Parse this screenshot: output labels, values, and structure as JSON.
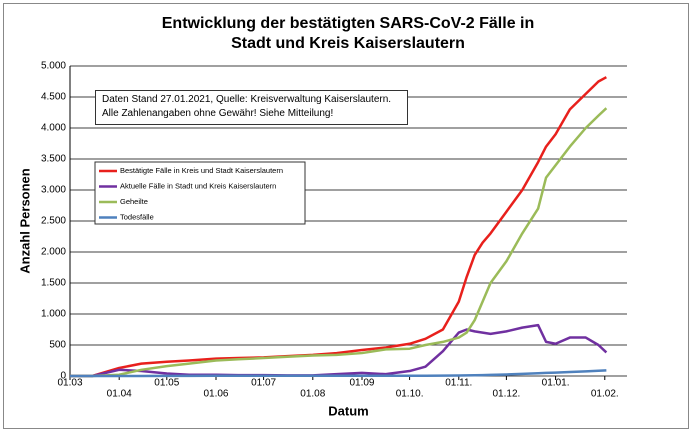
{
  "chart_data": {
    "type": "line",
    "title": "Entwicklung der bestätigten SARS-CoV-2 Fälle in Stadt und Kreis Kaiserslautern",
    "annotation": "Daten Stand 27.01.2021, Quelle: Kreisverwaltung Kaiserslautern. Alle Zahlenangaben ohne Gewähr! Siehe Mitteilung!",
    "xlabel": "Datum",
    "ylabel": "Anzahl Personen",
    "x": [
      0,
      14,
      31,
      45,
      61,
      75,
      92,
      106,
      122,
      137,
      153,
      168,
      184,
      199,
      214,
      224,
      235,
      245,
      250,
      255,
      260,
      265,
      275,
      285,
      295,
      300,
      306,
      315,
      325,
      333,
      338
    ],
    "series": [
      {
        "name": "Bestätigte Fälle in Kreis und Stadt Kaiserslautern",
        "color": "#e8201c",
        "values": [
          0,
          0,
          130,
          200,
          230,
          250,
          280,
          290,
          300,
          320,
          340,
          370,
          420,
          460,
          520,
          600,
          750,
          1200,
          1600,
          1950,
          2150,
          2300,
          2650,
          3000,
          3450,
          3700,
          3900,
          4300,
          4550,
          4750,
          4820
        ]
      },
      {
        "name": "Aktuelle Fälle in Stadt und Kreis Kaiserslautern",
        "color": "#7030a0",
        "values": [
          0,
          0,
          100,
          80,
          40,
          20,
          20,
          15,
          15,
          10,
          10,
          30,
          50,
          30,
          80,
          150,
          400,
          700,
          750,
          720,
          700,
          680,
          720,
          780,
          820,
          550,
          520,
          620,
          620,
          500,
          380
        ]
      },
      {
        "name": "Geheilte",
        "color": "#9bbb59",
        "values": [
          0,
          0,
          20,
          100,
          160,
          200,
          250,
          270,
          290,
          310,
          330,
          340,
          370,
          430,
          440,
          500,
          550,
          620,
          700,
          900,
          1200,
          1500,
          1850,
          2300,
          2700,
          3200,
          3400,
          3700,
          4000,
          4200,
          4320
        ]
      },
      {
        "name": "Todesfälle",
        "color": "#4f81bd",
        "values": [
          0,
          0,
          0,
          0,
          2,
          3,
          4,
          4,
          4,
          4,
          4,
          4,
          4,
          4,
          5,
          5,
          6,
          8,
          10,
          12,
          15,
          18,
          25,
          35,
          45,
          50,
          55,
          65,
          75,
          85,
          90
        ]
      }
    ],
    "xlim": [
      0,
      351
    ],
    "xticks": [
      {
        "value": 0,
        "label": "01.03"
      },
      {
        "value": 31,
        "label": "01.04"
      },
      {
        "value": 61,
        "label": "01.05"
      },
      {
        "value": 92,
        "label": "01.06"
      },
      {
        "value": 122,
        "label": "01.07"
      },
      {
        "value": 153,
        "label": "01.08"
      },
      {
        "value": 184,
        "label": "01.09"
      },
      {
        "value": 214,
        "label": "01.10."
      },
      {
        "value": 245,
        "label": "01.11."
      },
      {
        "value": 275,
        "label": "01.12."
      },
      {
        "value": 306,
        "label": "01.01."
      },
      {
        "value": 337,
        "label": "01.02."
      }
    ],
    "ylim": [
      0,
      5000
    ],
    "yticks": [
      0,
      500,
      {
        "value": 1000,
        "label": "1.000"
      },
      {
        "value": 1500,
        "label": "1.500"
      },
      {
        "value": 2000,
        "label": "2.000"
      },
      {
        "value": 2500,
        "label": "2.500"
      },
      {
        "value": 3000,
        "label": "3.000"
      },
      {
        "value": 3500,
        "label": "3.500"
      },
      {
        "value": 4000,
        "label": "4.000"
      },
      {
        "value": 4500,
        "label": "4.500"
      },
      {
        "value": 5000,
        "label": "5.000"
      }
    ],
    "grid": true
  }
}
